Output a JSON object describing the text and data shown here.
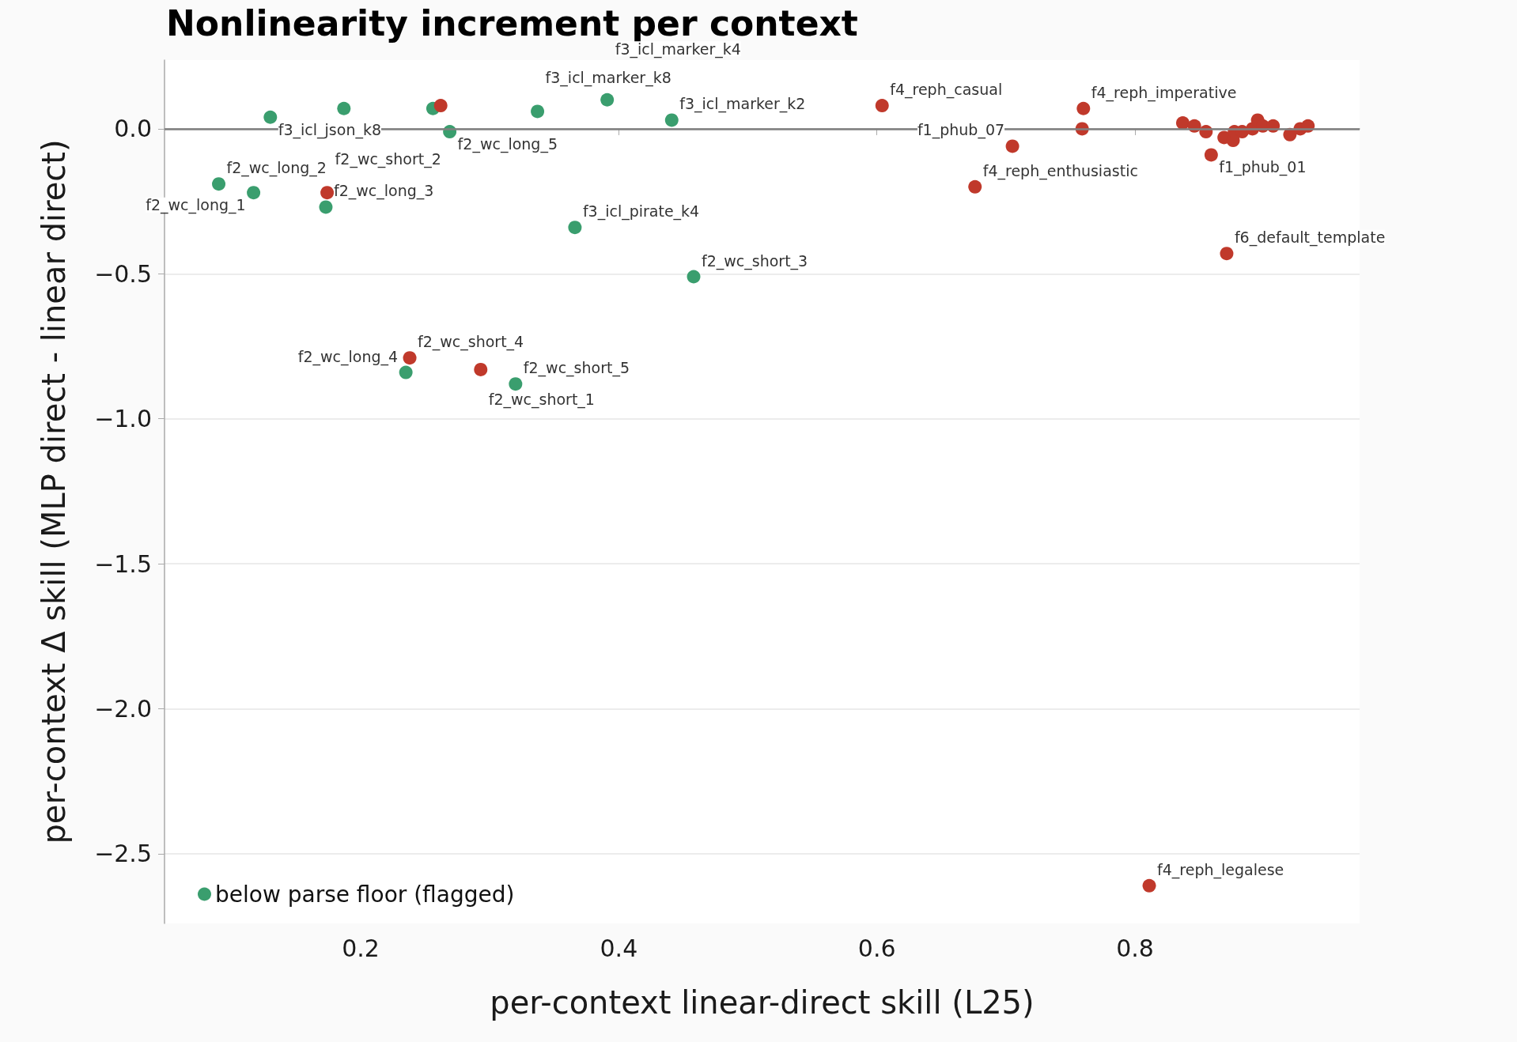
{
  "chart_data": {
    "type": "scatter",
    "title": "Nonlinearity increment per context",
    "xlabel": "per-context linear-direct skill (L25)",
    "ylabel": "per-context Δ skill (MLP direct - linear direct)",
    "series": [
      {
        "name": "below parse floor (flagged)",
        "color": "#3a9e6e",
        "x": [
          0.09,
          0.117,
          0.13,
          0.173,
          0.187,
          0.235,
          0.256,
          0.269,
          0.32,
          0.337,
          0.366,
          0.391,
          0.441,
          0.458
        ],
        "values": [
          -0.19,
          -0.22,
          0.04,
          -0.27,
          0.07,
          -0.84,
          0.07,
          -0.01,
          -0.88,
          0.06,
          -0.34,
          0.1,
          0.03,
          -0.51
        ]
      },
      {
        "color": "#c0392b",
        "x": [
          0.174,
          0.238,
          0.262,
          0.293,
          0.604,
          0.676,
          0.705,
          0.759,
          0.76,
          0.811,
          0.837,
          0.846,
          0.855,
          0.859,
          0.871,
          0.869,
          0.876,
          0.877,
          0.883,
          0.891,
          0.895,
          0.899,
          0.907,
          0.92,
          0.928,
          0.934
        ],
        "values": [
          -0.22,
          -0.79,
          0.08,
          -0.83,
          0.08,
          -0.2,
          -0.06,
          0.0,
          0.07,
          -2.61,
          0.02,
          0.01,
          -0.01,
          -0.09,
          -0.43,
          -0.03,
          -0.04,
          -0.01,
          -0.01,
          0.0,
          0.03,
          0.01,
          0.01,
          -0.02,
          0.0,
          0.01
        ]
      }
    ],
    "annotations": [
      {
        "text": "f2_wc_long_2",
        "x": 0.09,
        "y": -0.19
      },
      {
        "text": "f2_wc_long_1",
        "x": 0.117,
        "y": -0.22
      },
      {
        "text": "f3_icl_json_k8",
        "x": 0.13,
        "y": 0.04
      },
      {
        "text": "f2_wc_long_3",
        "x": 0.173,
        "y": -0.27
      },
      {
        "text": "f2_wc_long_4",
        "x": 0.235,
        "y": -0.84
      },
      {
        "text": "f2_wc_long_5",
        "x": 0.269,
        "y": -0.01
      },
      {
        "text": "f2_wc_short_5",
        "x": 0.32,
        "y": -0.88
      },
      {
        "text": "f3_icl_marker_k8",
        "x": 0.337,
        "y": 0.06
      },
      {
        "text": "f3_icl_pirate_k4",
        "x": 0.366,
        "y": -0.34
      },
      {
        "text": "f3_icl_marker_k4",
        "x": 0.391,
        "y": 0.1
      },
      {
        "text": "f3_icl_marker_k2",
        "x": 0.441,
        "y": 0.03
      },
      {
        "text": "f2_wc_short_3",
        "x": 0.458,
        "y": -0.51
      },
      {
        "text": "f2_wc_short_2",
        "x": 0.174,
        "y": -0.22
      },
      {
        "text": "f2_wc_short_4",
        "x": 0.238,
        "y": -0.79
      },
      {
        "text": "f2_wc_short_1",
        "x": 0.293,
        "y": -0.83
      },
      {
        "text": "f4_reph_casual",
        "x": 0.604,
        "y": 0.08
      },
      {
        "text": "f4_reph_enthusiastic",
        "x": 0.676,
        "y": -0.2
      },
      {
        "text": "f1_phub_07",
        "x": 0.705,
        "y": -0.06
      },
      {
        "text": "f4_reph_imperative",
        "x": 0.76,
        "y": 0.07
      },
      {
        "text": "f4_reph_legalese",
        "x": 0.811,
        "y": -2.61
      },
      {
        "text": "f1_phub_01",
        "x": 0.859,
        "y": -0.09
      },
      {
        "text": "f6_default_template",
        "x": 0.871,
        "y": -0.43
      }
    ],
    "xlim": [
      0.048,
      0.974
    ],
    "ylim": [
      -2.74,
      0.237
    ],
    "xticks": [
      0.2,
      0.4,
      0.6,
      0.8
    ],
    "yticks": [
      {
        "value": 0,
        "label": "0.0"
      },
      {
        "value": -0.5,
        "label": "−0.5"
      },
      {
        "value": -1,
        "label": "−1.0"
      },
      {
        "value": -1.5,
        "label": "−1.5"
      },
      {
        "value": -2,
        "label": "−2.0"
      },
      {
        "value": -2.5,
        "label": "−2.5"
      }
    ],
    "ref_lines": [
      {
        "axis": "y",
        "value": 0,
        "color": "#808080"
      }
    ],
    "grid": "y",
    "legend": "bottom left",
    "marker": "circle"
  }
}
